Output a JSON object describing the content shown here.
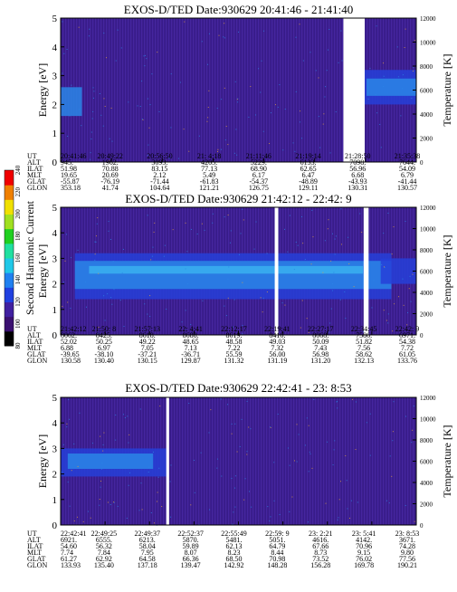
{
  "colors": {
    "bg_dark": "#3a1e8a",
    "bg_mid": "#4826a0",
    "band_blue": "#2640d8",
    "band_cyan": "#2a86e6",
    "band_light": "#3ab0f0",
    "band_spark": "#e0a040",
    "gap": "#ffffff"
  },
  "colorbar": {
    "label": "Second Harmonic Current",
    "ticks": [
      "80",
      "100",
      "120",
      "140",
      "160",
      "180",
      "200",
      "220",
      "240"
    ],
    "colors": [
      "#000000",
      "#3a1070",
      "#4020a0",
      "#2040e0",
      "#2080f0",
      "#20c8e8",
      "#20e0a0",
      "#20d020",
      "#a0e020",
      "#f0e000",
      "#f08000",
      "#f00000"
    ]
  },
  "chart_data": [
    {
      "type": "heatmap",
      "title": "EXOS-D/TED   Date:930629  20:41:46 - 21:41:40",
      "ylabel": "Energy [eV]",
      "y2label": "Temperature [K]",
      "ylim": [
        0,
        5
      ],
      "yticks": [
        "0",
        "1",
        "2",
        "3",
        "4",
        "5"
      ],
      "y2lim": [
        0,
        12000
      ],
      "y2ticks": [
        "0",
        "2000",
        "4000",
        "6000",
        "8000",
        "10000",
        "12000"
      ],
      "gaps": [
        [
          0.795,
          0.855
        ]
      ],
      "bands": [
        [
          0.0,
          0.06,
          1.6,
          2.6,
          "band_cyan"
        ],
        [
          0.82,
          1.0,
          2.0,
          3.2,
          "band_blue"
        ],
        [
          0.86,
          1.0,
          2.3,
          2.9,
          "band_cyan"
        ]
      ],
      "ephemeris_labels": [
        "UT",
        "ALT",
        "ILAT",
        "MLT",
        "GLAT",
        "GLON"
      ],
      "ephemeris": [
        [
          "20:41:46",
          "20:49:22",
          "20:56:50",
          "21: 4:18",
          "21:11:46",
          "21:19:14",
          "21:28:50",
          "21:35:38"
        ],
        [
          "945.",
          "1962.",
          "3093.",
          "4205.",
          "5229.",
          "6133.",
          "7098.",
          "7644."
        ],
        [
          "51.98",
          "70.88",
          "83.15",
          "77.13",
          "68.90",
          "62.65",
          "56.96",
          "54.09"
        ],
        [
          "19.65",
          "20.69",
          "2.12",
          "5.49",
          "6.17",
          "6.47",
          "6.68",
          "6.79"
        ],
        [
          "-55.87",
          "-76.19",
          "-71.44",
          "-61.83",
          "-54.37",
          "-48.89",
          "-43.93",
          "-41.44"
        ],
        [
          "353.18",
          "41.74",
          "104.64",
          "121.21",
          "126.75",
          "129.11",
          "130.31",
          "130.57"
        ]
      ]
    },
    {
      "type": "heatmap",
      "title": "EXOS-D/TED   Date:930629  21:42:12 - 22:42: 9",
      "ylabel": "Energy [eV]",
      "y2label": "Temperature [K]",
      "ylim": [
        0,
        5
      ],
      "yticks": [
        "0",
        "1",
        "2",
        "3",
        "4",
        "5"
      ],
      "y2lim": [
        0,
        12000
      ],
      "y2ticks": [
        "0",
        "2000",
        "4000",
        "6000",
        "8000",
        "10000",
        "12000"
      ],
      "gaps": [
        [
          0.602,
          0.612
        ],
        [
          0.852,
          0.866
        ]
      ],
      "bands": [
        [
          0.04,
          0.93,
          1.4,
          3.2,
          "band_blue"
        ],
        [
          0.04,
          0.93,
          1.8,
          2.9,
          "band_cyan"
        ],
        [
          0.08,
          0.85,
          2.4,
          2.7,
          "band_light"
        ],
        [
          0.9,
          1.0,
          2.0,
          3.0,
          "band_blue"
        ]
      ],
      "ephemeris_labels": [
        "UT",
        "ALT",
        "ILAT",
        "MLT",
        "GLAT",
        "GLON"
      ],
      "ephemeris": [
        [
          "21:42:12",
          "21:50: 8",
          "21:57:13",
          "22: 4:41",
          "22:12:17",
          "22:19:41",
          "22:27:17",
          "22:34:45",
          "22:42: 9"
        ],
        [
          "8062.",
          "8425.",
          "8618.",
          "8688.",
          "8619.",
          "8416.",
          "8068.",
          "7586.",
          "6971."
        ],
        [
          "52.02",
          "50.25",
          "49.22",
          "48.65",
          "48.58",
          "49.03",
          "50.09",
          "51.82",
          "54.38"
        ],
        [
          "6.88",
          "6.97",
          "7.05",
          "7.13",
          "7.22",
          "7.32",
          "7.43",
          "7.56",
          "7.72"
        ],
        [
          "-39.65",
          "-38.10",
          "-37.21",
          "-36.71",
          "55.59",
          "56.00",
          "56.98",
          "58.62",
          "61.05"
        ],
        [
          "130.58",
          "130.40",
          "130.15",
          "129.87",
          "131.32",
          "131.19",
          "131.20",
          "132.13",
          "133.76"
        ]
      ]
    },
    {
      "type": "heatmap",
      "title": "EXOS-D/TED   Date:930629  22:42:41 - 23: 8:53",
      "ylabel": "Energy [eV]",
      "y2label": "Temperature [K]",
      "ylim": [
        0,
        5
      ],
      "yticks": [
        "0",
        "1",
        "2",
        "3",
        "4",
        "5"
      ],
      "y2lim": [
        0,
        12000
      ],
      "y2ticks": [
        "0",
        "2000",
        "4000",
        "6000",
        "8000",
        "10000",
        "12000"
      ],
      "gaps": [
        [
          0.297,
          0.305
        ]
      ],
      "bands": [
        [
          0.0,
          0.3,
          1.9,
          3.0,
          "band_blue"
        ],
        [
          0.02,
          0.26,
          2.2,
          2.8,
          "band_cyan"
        ]
      ],
      "ephemeris_labels": [
        "UT",
        "ALT",
        "ILAT",
        "MLT",
        "GLAT",
        "GLON"
      ],
      "ephemeris": [
        [
          "22:42:41",
          "22:49:25",
          "22:49:37",
          "22:52:37",
          "22:55:49",
          "22:59: 9",
          "23: 2:21",
          "23: 5:41",
          "23: 8:53"
        ],
        [
          "6921.",
          "6555.",
          "6213.",
          "5870.",
          "5481.",
          "5051.",
          "4616.",
          "4142.",
          "3671."
        ],
        [
          "54.60",
          "56.32",
          "58.04",
          "59.89",
          "62.13",
          "64.79",
          "67.66",
          "70.96",
          "74.28"
        ],
        [
          "7.74",
          "7.84",
          "7.95",
          "8.07",
          "8.23",
          "8.44",
          "8.73",
          "9.15",
          "9.80"
        ],
        [
          "61.27",
          "62.92",
          "64.58",
          "66.36",
          "68.50",
          "70.98",
          "73.52",
          "76.02",
          "77.56"
        ],
        [
          "133.93",
          "135.40",
          "137.18",
          "139.47",
          "142.92",
          "148.28",
          "156.28",
          "169.78",
          "190.21"
        ]
      ]
    }
  ]
}
